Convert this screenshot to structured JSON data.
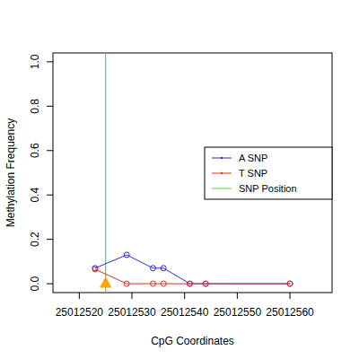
{
  "chart_data": {
    "type": "line",
    "x_label": "CpG Coordinates",
    "y_label": "Methylation Frequency",
    "x": [
      25012523,
      25012529,
      25012534,
      25012536,
      25012541,
      25012544,
      25012560
    ],
    "series": [
      {
        "name": "A SNP",
        "color": "#2a2ad0",
        "marker": "circle",
        "values": [
          0.07,
          0.13,
          0.07,
          0.07,
          0,
          0,
          0
        ]
      },
      {
        "name": "T SNP",
        "color": "#e03020",
        "marker": "circle",
        "values": [
          0.065,
          0,
          0,
          0,
          0,
          0,
          0
        ]
      }
    ],
    "snp": {
      "name": "SNP Position",
      "color": "#44dd44",
      "x": 25012525,
      "y": 0
    },
    "xlim": [
      25012515,
      25012568
    ],
    "ylim": [
      -0.04,
      1.04
    ],
    "xticks": [
      25012520,
      25012530,
      25012540,
      25012550,
      25012560
    ],
    "yticks": [
      {
        "value": 0,
        "label": "0.0"
      },
      {
        "value": 0.2,
        "label": "0.2"
      },
      {
        "value": 0.4,
        "label": "0.4"
      },
      {
        "value": 0.6,
        "label": "0.6"
      },
      {
        "value": 0.8,
        "label": "0.8"
      },
      {
        "value": 1,
        "label": "1.0"
      }
    ],
    "legend": "right"
  }
}
